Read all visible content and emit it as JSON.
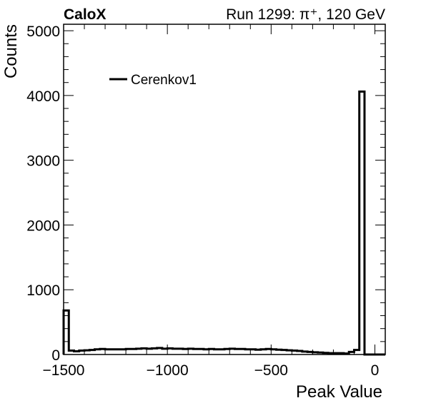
{
  "header": {
    "experiment": "CaloX",
    "run_info": "Run 1299:   π⁺, 120 GeV"
  },
  "chart_data": {
    "type": "histogram",
    "xlabel": "Peak Value",
    "ylabel": "Counts",
    "xlim": [
      -1500,
      50
    ],
    "ylim": [
      0,
      5100
    ],
    "x_ticks": [
      -1500,
      -1000,
      -500,
      0
    ],
    "x_tick_labels": [
      "−1500",
      "−1000",
      "−500",
      "0"
    ],
    "y_ticks": [
      0,
      1000,
      2000,
      3000,
      4000,
      5000
    ],
    "y_tick_labels": [
      "0",
      "1000",
      "2000",
      "3000",
      "4000",
      "5000"
    ],
    "bin_width": 25,
    "bin_start": -1500,
    "legend": {
      "position": "top-left",
      "entries": [
        "Cerenkov1"
      ]
    },
    "series": [
      {
        "name": "Cerenkov1",
        "color": "#000000",
        "values": [
          680,
          60,
          50,
          60,
          65,
          70,
          80,
          85,
          80,
          80,
          80,
          80,
          85,
          85,
          90,
          95,
          90,
          95,
          100,
          90,
          95,
          90,
          90,
          85,
          90,
          85,
          85,
          80,
          85,
          80,
          80,
          85,
          90,
          85,
          85,
          80,
          80,
          75,
          80,
          85,
          80,
          75,
          70,
          65,
          60,
          55,
          45,
          40,
          35,
          30,
          25,
          20,
          20,
          20,
          15,
          40,
          70,
          4060
        ]
      }
    ]
  }
}
